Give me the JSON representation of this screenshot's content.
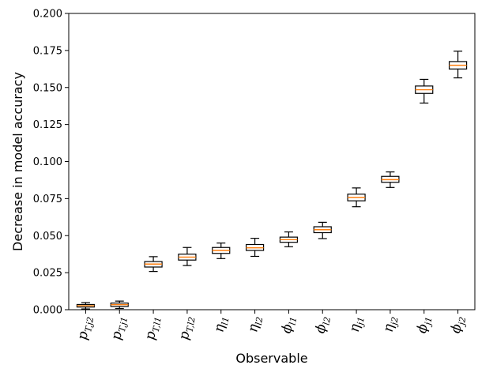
{
  "chart_data": {
    "type": "box",
    "xlabel": "Observable",
    "ylabel": "Decrease in model accuracy",
    "ylim": [
      0,
      0.2
    ],
    "yticks": [
      "0.000",
      "0.025",
      "0.050",
      "0.075",
      "0.100",
      "0.125",
      "0.150",
      "0.175",
      "0.200"
    ],
    "grid": false,
    "colors": {
      "box_edge": "#000000",
      "median": "#ff7f0e"
    },
    "categories": [
      {
        "symbol": "p",
        "sub": "T,j2"
      },
      {
        "symbol": "p",
        "sub": "T,j1"
      },
      {
        "symbol": "p",
        "sub": "T,l1"
      },
      {
        "symbol": "p",
        "sub": "T,l2"
      },
      {
        "symbol": "η",
        "sub": "l1"
      },
      {
        "symbol": "η",
        "sub": "l2"
      },
      {
        "symbol": "ϕ",
        "sub": "l1"
      },
      {
        "symbol": "ϕ",
        "sub": "l2"
      },
      {
        "symbol": "η",
        "sub": "j1"
      },
      {
        "symbol": "η",
        "sub": "j2"
      },
      {
        "symbol": "ϕ",
        "sub": "j1"
      },
      {
        "symbol": "ϕ",
        "sub": "j2"
      }
    ],
    "boxes": [
      {
        "min": 0.0005,
        "q1": 0.0018,
        "median": 0.0027,
        "q3": 0.0035,
        "max": 0.0048
      },
      {
        "min": 0.0008,
        "q1": 0.0022,
        "median": 0.0034,
        "q3": 0.0045,
        "max": 0.0058
      },
      {
        "min": 0.0258,
        "q1": 0.0288,
        "median": 0.0308,
        "q3": 0.0325,
        "max": 0.0358
      },
      {
        "min": 0.0298,
        "q1": 0.0335,
        "median": 0.0355,
        "q3": 0.0375,
        "max": 0.042
      },
      {
        "min": 0.0345,
        "q1": 0.038,
        "median": 0.04,
        "q3": 0.042,
        "max": 0.045
      },
      {
        "min": 0.036,
        "q1": 0.04,
        "median": 0.0418,
        "q3": 0.044,
        "max": 0.0482
      },
      {
        "min": 0.0425,
        "q1": 0.0455,
        "median": 0.0473,
        "q3": 0.049,
        "max": 0.0525
      },
      {
        "min": 0.048,
        "q1": 0.052,
        "median": 0.054,
        "q3": 0.056,
        "max": 0.059
      },
      {
        "min": 0.0695,
        "q1": 0.0735,
        "median": 0.0758,
        "q3": 0.078,
        "max": 0.0822
      },
      {
        "min": 0.0825,
        "q1": 0.086,
        "median": 0.0878,
        "q3": 0.09,
        "max": 0.093
      },
      {
        "min": 0.1395,
        "q1": 0.146,
        "median": 0.1485,
        "q3": 0.151,
        "max": 0.1555
      },
      {
        "min": 0.1565,
        "q1": 0.1625,
        "median": 0.165,
        "q3": 0.1675,
        "max": 0.1745
      }
    ]
  }
}
